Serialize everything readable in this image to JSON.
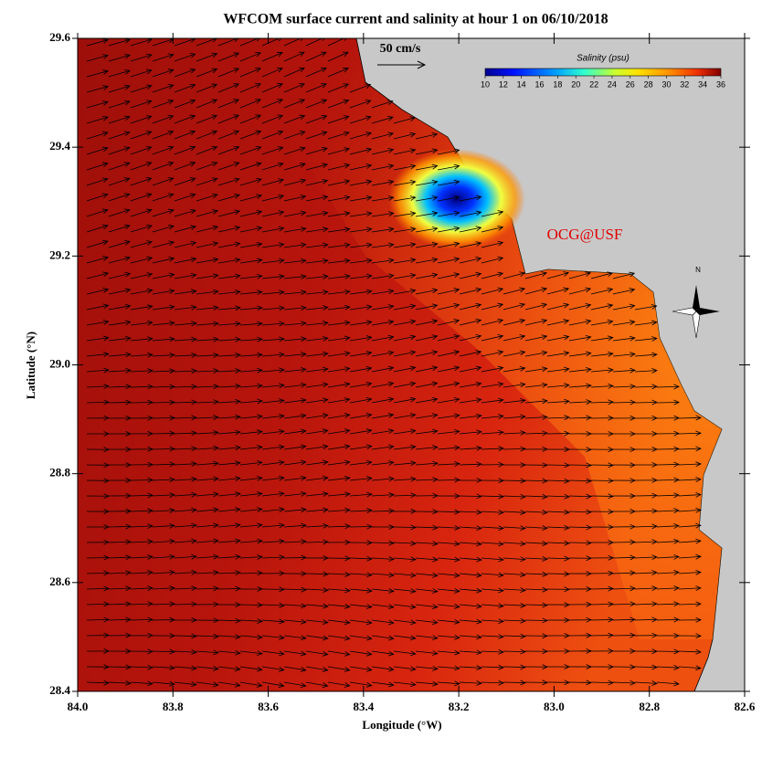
{
  "title": "WFCOM surface current and salinity at hour 1 on 06/10/2018",
  "x_axis": {
    "label": "Longitude (°W)",
    "lim": [
      84,
      82.6
    ],
    "ticks": [
      {
        "value": 84,
        "label": "84.0"
      },
      83.8,
      83.6,
      83.4,
      83.2,
      {
        "value": 83,
        "label": "83.0"
      },
      82.8,
      82.6
    ]
  },
  "y_axis": {
    "label": "Latitude (°N)",
    "lim": [
      28.4,
      29.6
    ],
    "ticks": [
      28.4,
      28.6,
      28.8,
      {
        "value": 29,
        "label": "29.0"
      },
      29.2,
      29.4,
      29.6
    ]
  },
  "colorbar": {
    "title": "Salinity (psu)",
    "lim": [
      10,
      36
    ],
    "ticks": [
      10,
      12,
      14,
      16,
      18,
      20,
      22,
      24,
      26,
      28,
      30,
      32,
      34,
      36
    ]
  },
  "scale_arrow": {
    "label": "50 cm/s"
  },
  "credit": "OCG@USF",
  "compass": "N"
}
